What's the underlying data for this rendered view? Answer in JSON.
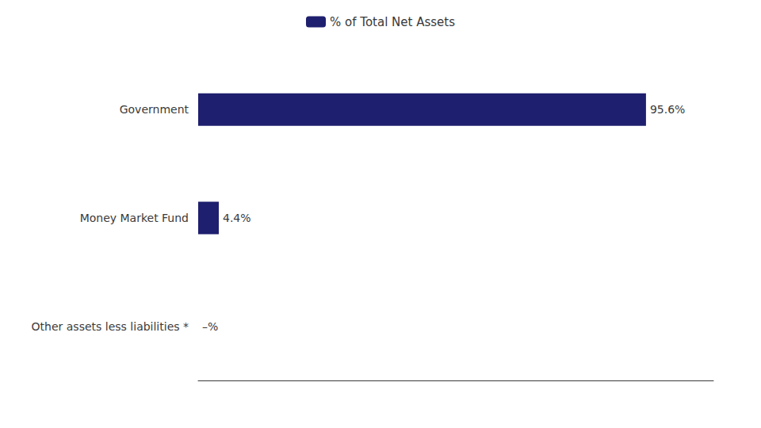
{
  "chart_data": {
    "type": "bar",
    "orientation": "horizontal",
    "categories": [
      "Government",
      "Money Market Fund",
      "Other assets less liabilities *"
    ],
    "series": [
      {
        "name": "% of Total Net Assets",
        "color": "#1e1f6e",
        "values": [
          95.6,
          4.4,
          0.0
        ],
        "value_labels": [
          "95.6%",
          "4.4%",
          "–%"
        ]
      }
    ],
    "xlim": [
      0,
      110
    ],
    "data_labels": true,
    "tick_labels": "y",
    "grid": false,
    "legend": "top"
  }
}
